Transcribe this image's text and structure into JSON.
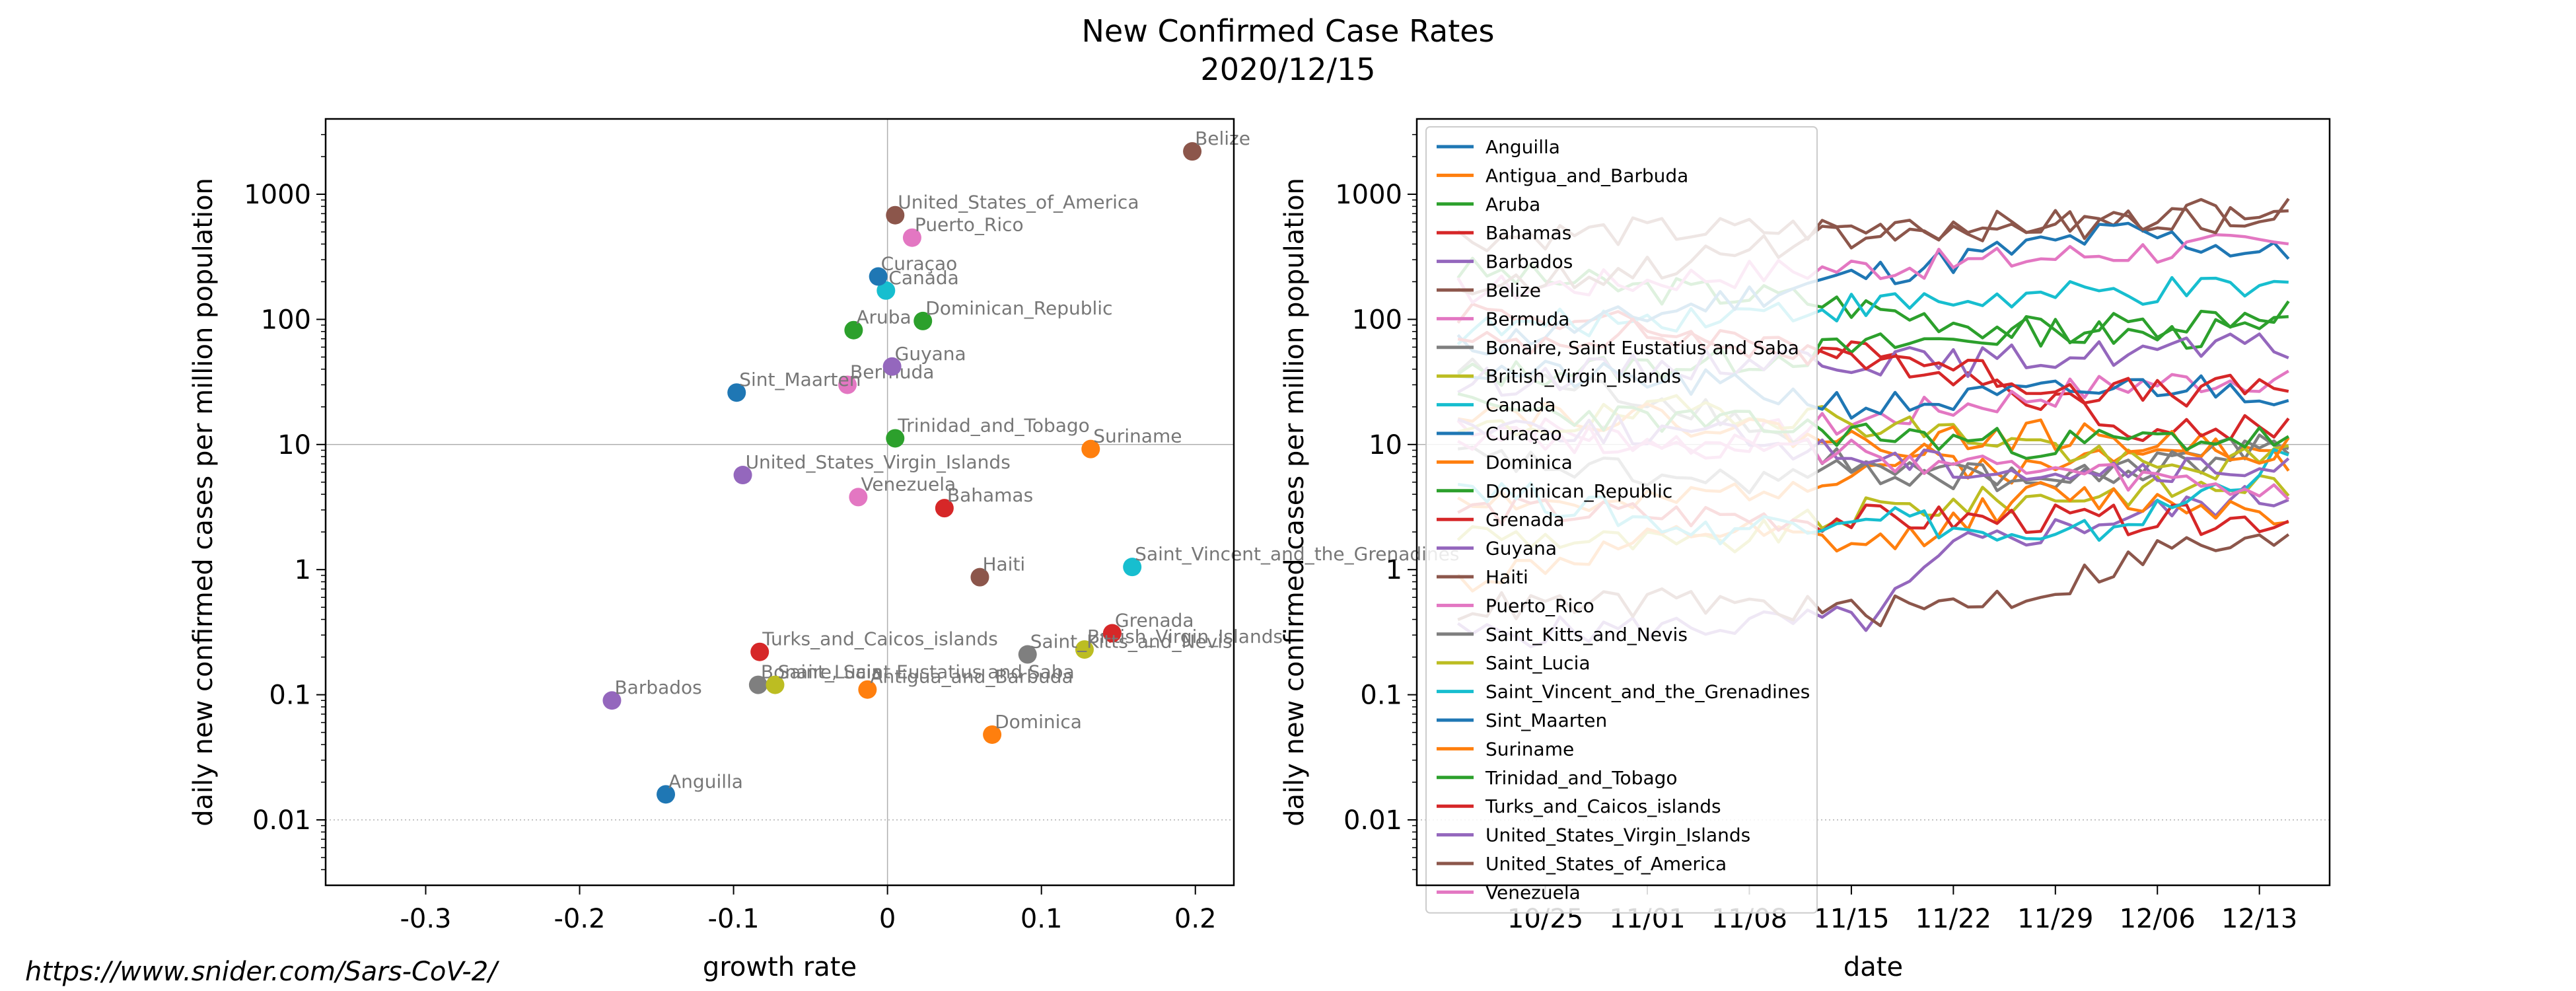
{
  "title": "New Confirmed Case Rates",
  "subtitle": "2020/12/15",
  "footer": "https://www.snider.com/Sars-CoV-2/",
  "chart_data": [
    {
      "type": "scatter",
      "xlabel": "growth rate",
      "ylabel": "daily new confirmed cases per million population",
      "xlim": [
        -0.365,
        0.225
      ],
      "ylim": [
        0.003,
        4000
      ],
      "yscale": "log",
      "xticks": [
        -0.3,
        -0.2,
        -0.1,
        0,
        0.1,
        0.2
      ],
      "xtick_labels": [
        "-0.3",
        "-0.2",
        "-0.1",
        "0",
        "0.1",
        "0.2"
      ],
      "yticks": [
        0.01,
        0.1,
        1,
        10,
        100,
        1000
      ],
      "ytick_labels": [
        "0.01",
        "0.1",
        "1",
        "10",
        "100",
        "1000"
      ],
      "points": [
        {
          "label": "Anguilla",
          "x": -0.144,
          "y": 0.016,
          "color": "#1f77b4"
        },
        {
          "label": "Antigua_and_Barbuda",
          "x": -0.013,
          "y": 0.11,
          "color": "#ff7f0e"
        },
        {
          "label": "Aruba",
          "x": -0.022,
          "y": 82,
          "color": "#2ca02c"
        },
        {
          "label": "Bahamas",
          "x": 0.037,
          "y": 3.1,
          "color": "#d62728"
        },
        {
          "label": "Barbados",
          "x": -0.179,
          "y": 0.09,
          "color": "#9467bd"
        },
        {
          "label": "Belize",
          "x": 0.198,
          "y": 2200,
          "color": "#8c564b"
        },
        {
          "label": "Bermuda",
          "x": -0.026,
          "y": 30,
          "color": "#e377c2"
        },
        {
          "label": "Bonaire, Saint Eustatius and Saba",
          "x": -0.084,
          "y": 0.12,
          "color": "#7f7f7f"
        },
        {
          "label": "British_Virgin_Islands",
          "x": 0.128,
          "y": 0.23,
          "color": "#bcbd22"
        },
        {
          "label": "Canada",
          "x": -0.001,
          "y": 170,
          "color": "#17becf"
        },
        {
          "label": "Curaçao",
          "x": -0.006,
          "y": 220,
          "color": "#1f77b4"
        },
        {
          "label": "Dominica",
          "x": 0.068,
          "y": 0.048,
          "color": "#ff7f0e"
        },
        {
          "label": "Dominican_Republic",
          "x": 0.023,
          "y": 97,
          "color": "#2ca02c"
        },
        {
          "label": "Grenada",
          "x": 0.146,
          "y": 0.31,
          "color": "#d62728"
        },
        {
          "label": "Guyana",
          "x": 0.003,
          "y": 42,
          "color": "#9467bd"
        },
        {
          "label": "Haiti",
          "x": 0.06,
          "y": 0.87,
          "color": "#8c564b"
        },
        {
          "label": "Puerto_Rico",
          "x": 0.016,
          "y": 450,
          "color": "#e377c2"
        },
        {
          "label": "Saint_Kitts_and_Nevis",
          "x": 0.091,
          "y": 0.21,
          "color": "#7f7f7f"
        },
        {
          "label": "Saint_Lucia",
          "x": -0.073,
          "y": 0.12,
          "color": "#bcbd22"
        },
        {
          "label": "Saint_Vincent_and_the_Grenadines",
          "x": 0.159,
          "y": 1.05,
          "color": "#17becf"
        },
        {
          "label": "Sint_Maarten",
          "x": -0.098,
          "y": 26,
          "color": "#1f77b4"
        },
        {
          "label": "Suriname",
          "x": 0.132,
          "y": 9.2,
          "color": "#ff7f0e"
        },
        {
          "label": "Trinidad_and_Tobago",
          "x": 0.005,
          "y": 11.2,
          "color": "#2ca02c"
        },
        {
          "label": "Turks_and_Caicos_islands",
          "x": -0.083,
          "y": 0.22,
          "color": "#d62728"
        },
        {
          "label": "United_States_Virgin_Islands",
          "x": -0.094,
          "y": 5.7,
          "color": "#9467bd"
        },
        {
          "label": "United_States_of_America",
          "x": 0.005,
          "y": 680,
          "color": "#8c564b"
        },
        {
          "label": "Venezuela",
          "x": -0.019,
          "y": 3.8,
          "color": "#e377c2"
        }
      ]
    },
    {
      "type": "line",
      "xlabel": "date",
      "ylabel": "daily new confirmed cases per million population",
      "yscale": "log",
      "ylim": [
        0.003,
        4000
      ],
      "x_start": "2020-10-19",
      "x_end": "2020-12-15",
      "xticks": [
        "2020-10-25",
        "2020-11-01",
        "2020-11-08",
        "2020-11-15",
        "2020-11-22",
        "2020-11-29",
        "2020-12-06",
        "2020-12-13"
      ],
      "xtick_labels": [
        "10/25",
        "11/01",
        "11/08",
        "11/15",
        "11/22",
        "11/29",
        "12/06",
        "12/13"
      ],
      "yticks": [
        0.01,
        0.1,
        1,
        10,
        100,
        1000
      ],
      "ytick_labels": [
        "0.01",
        "0.1",
        "1",
        "10",
        "100",
        "1000"
      ],
      "legend": "upper-left",
      "series": [
        {
          "name": "Anguilla",
          "color": "#1f77b4",
          "anchors": [],
          "seed": 1
        },
        {
          "name": "Antigua_and_Barbuda",
          "color": "#ff7f0e",
          "anchors": [
            [
              0,
              4
            ],
            [
              0.2,
              3
            ],
            [
              0.4,
              5
            ],
            [
              0.55,
              8
            ],
            [
              0.7,
              6
            ],
            [
              0.85,
              12
            ],
            [
              1,
              7
            ]
          ],
          "seed": 2
        },
        {
          "name": "Aruba",
          "color": "#2ca02c",
          "anchors": [
            [
              0,
              250
            ],
            [
              0.2,
              180
            ],
            [
              0.4,
              150
            ],
            [
              0.55,
              110
            ],
            [
              0.7,
              80
            ],
            [
              0.85,
              75
            ],
            [
              1,
              82
            ]
          ],
          "seed": 3
        },
        {
          "name": "Bahamas",
          "color": "#d62728",
          "anchors": [
            [
              0,
              120
            ],
            [
              0.2,
              90
            ],
            [
              0.4,
              60
            ],
            [
              0.55,
              45
            ],
            [
              0.7,
              25
            ],
            [
              0.85,
              12
            ],
            [
              1,
              15
            ]
          ],
          "seed": 4
        },
        {
          "name": "Barbados",
          "color": "#9467bd",
          "anchors": [
            [
              0,
              0.3
            ],
            [
              0.5,
              0.4
            ],
            [
              0.6,
              1.5
            ],
            [
              0.7,
              2
            ],
            [
              0.85,
              3
            ],
            [
              1,
              4
            ]
          ],
          "seed": 5
        },
        {
          "name": "Belize",
          "color": "#8c564b",
          "anchors": [
            [
              0,
              450
            ],
            [
              0.2,
              500
            ],
            [
              0.4,
              520
            ],
            [
              0.6,
              550
            ],
            [
              0.8,
              600
            ],
            [
              0.9,
              750
            ],
            [
              1,
              700
            ]
          ],
          "seed": 6
        },
        {
          "name": "Bermuda",
          "color": "#e377c2",
          "anchors": [
            [
              0,
              15
            ],
            [
              0.3,
              10
            ],
            [
              0.6,
              20
            ],
            [
              0.8,
              30
            ],
            [
              1,
              35
            ]
          ],
          "seed": 7
        },
        {
          "name": "Bonaire, Saint Eustatius and Saba",
          "color": "#7f7f7f",
          "anchors": [
            [
              0,
              40
            ],
            [
              0.3,
              20
            ],
            [
              0.5,
              6
            ],
            [
              0.7,
              5
            ],
            [
              0.85,
              8
            ],
            [
              1,
              10
            ]
          ],
          "seed": 8
        },
        {
          "name": "British_Virgin_Islands",
          "color": "#bcbd22",
          "anchors": [
            [
              0,
              2
            ],
            [
              0.3,
              1.5
            ],
            [
              0.5,
              3
            ],
            [
              0.75,
              4
            ],
            [
              1,
              5
            ]
          ],
          "seed": 9
        },
        {
          "name": "Canada",
          "color": "#17becf",
          "anchors": [
            [
              0,
              80
            ],
            [
              0.2,
              100
            ],
            [
              0.4,
              120
            ],
            [
              0.6,
              140
            ],
            [
              0.8,
              160
            ],
            [
              1,
              175
            ]
          ],
          "seed": 10
        },
        {
          "name": "Curaçao",
          "color": "#1f77b4",
          "anchors": [
            [
              0,
              60
            ],
            [
              0.2,
              100
            ],
            [
              0.4,
              180
            ],
            [
              0.6,
              300
            ],
            [
              0.8,
              500
            ],
            [
              1,
              320
            ]
          ],
          "seed": 11
        },
        {
          "name": "Dominica",
          "color": "#ff7f0e",
          "anchors": [
            [
              0,
              0.8
            ],
            [
              0.3,
              2
            ],
            [
              0.5,
              1.5
            ],
            [
              0.7,
              4
            ],
            [
              1,
              3
            ]
          ],
          "seed": 12
        },
        {
          "name": "Dominican_Republic",
          "color": "#2ca02c",
          "anchors": [
            [
              0,
              35
            ],
            [
              0.3,
              45
            ],
            [
              0.5,
              60
            ],
            [
              0.7,
              80
            ],
            [
              0.85,
              95
            ],
            [
              1,
              120
            ]
          ],
          "seed": 13
        },
        {
          "name": "Grenada",
          "color": "#d62728",
          "anchors": [
            [
              0,
              3
            ],
            [
              0.5,
              2.5
            ],
            [
              1,
              2.5
            ]
          ],
          "seed": 14
        },
        {
          "name": "Guyana",
          "color": "#9467bd",
          "anchors": [
            [
              0,
              30
            ],
            [
              0.2,
              40
            ],
            [
              0.4,
              50
            ],
            [
              0.6,
              45
            ],
            [
              0.8,
              55
            ],
            [
              1,
              60
            ]
          ],
          "seed": 15
        },
        {
          "name": "Haiti",
          "color": "#8c564b",
          "anchors": [
            [
              0,
              0.5
            ],
            [
              0.3,
              0.55
            ],
            [
              0.5,
              0.45
            ],
            [
              0.7,
              0.65
            ],
            [
              0.85,
              1.5
            ],
            [
              1,
              1.6
            ]
          ],
          "seed": 16
        },
        {
          "name": "Puerto_Rico",
          "color": "#e377c2",
          "anchors": [
            [
              0,
              170
            ],
            [
              0.2,
              200
            ],
            [
              0.4,
              250
            ],
            [
              0.6,
              280
            ],
            [
              0.8,
              350
            ],
            [
              1,
              400
            ]
          ],
          "seed": 17
        },
        {
          "name": "Saint_Kitts_and_Nevis",
          "color": "#7f7f7f",
          "anchors": [
            [
              0,
              8
            ],
            [
              0.3,
              5
            ],
            [
              0.5,
              6
            ],
            [
              0.75,
              5
            ],
            [
              1,
              10
            ]
          ],
          "seed": 18
        },
        {
          "name": "Saint_Lucia",
          "color": "#bcbd22",
          "anchors": [
            [
              0,
              12
            ],
            [
              0.3,
              20
            ],
            [
              0.5,
              15
            ],
            [
              0.7,
              10
            ],
            [
              0.85,
              6
            ],
            [
              1,
              8
            ]
          ],
          "seed": 19
        },
        {
          "name": "Saint_Vincent_and_the_Grenadines",
          "color": "#17becf",
          "anchors": [
            [
              0,
              5
            ],
            [
              0.3,
              2
            ],
            [
              0.5,
              3
            ],
            [
              0.7,
              1.5
            ],
            [
              0.85,
              3
            ],
            [
              1,
              8
            ]
          ],
          "seed": 20
        },
        {
          "name": "Sint_Maarten",
          "color": "#1f77b4",
          "anchors": [
            [
              0,
              40
            ],
            [
              0.3,
              30
            ],
            [
              0.5,
              20
            ],
            [
              0.7,
              25
            ],
            [
              0.85,
              30
            ],
            [
              1,
              26
            ]
          ],
          "seed": 21
        },
        {
          "name": "Suriname",
          "color": "#ff7f0e",
          "anchors": [
            [
              0,
              20
            ],
            [
              0.3,
              15
            ],
            [
              0.5,
              10
            ],
            [
              0.7,
              12
            ],
            [
              0.85,
              10
            ],
            [
              1,
              9
            ]
          ],
          "seed": 22
        },
        {
          "name": "Trinidad_and_Tobago",
          "color": "#2ca02c",
          "anchors": [
            [
              0,
              20
            ],
            [
              0.3,
              15
            ],
            [
              0.5,
              12
            ],
            [
              0.7,
              10
            ],
            [
              0.85,
              11
            ],
            [
              1,
              11
            ]
          ],
          "seed": 23
        },
        {
          "name": "Turks_and_Caicos_islands",
          "color": "#d62728",
          "anchors": [
            [
              0,
              60
            ],
            [
              0.2,
              80
            ],
            [
              0.4,
              55
            ],
            [
              0.55,
              50
            ],
            [
              0.7,
              30
            ],
            [
              0.85,
              25
            ],
            [
              1,
              30
            ]
          ],
          "seed": 24
        },
        {
          "name": "United_States_Virgin_Islands",
          "color": "#9467bd",
          "anchors": [
            [
              0,
              15
            ],
            [
              0.3,
              12
            ],
            [
              0.5,
              8
            ],
            [
              0.7,
              6
            ],
            [
              0.85,
              6
            ],
            [
              1,
              6
            ]
          ],
          "seed": 25
        },
        {
          "name": "United_States_of_America",
          "color": "#8c564b",
          "anchors": [
            [
              0,
              180
            ],
            [
              0.2,
              250
            ],
            [
              0.4,
              400
            ],
            [
              0.55,
              500
            ],
            [
              0.7,
              550
            ],
            [
              0.85,
              600
            ],
            [
              1,
              680
            ]
          ],
          "seed": 26
        },
        {
          "name": "Venezuela",
          "color": "#e377c2",
          "anchors": [
            [
              0,
              12
            ],
            [
              0.3,
              10
            ],
            [
              0.5,
              8
            ],
            [
              0.7,
              6
            ],
            [
              0.85,
              5
            ],
            [
              1,
              4
            ]
          ],
          "seed": 27
        }
      ]
    }
  ]
}
